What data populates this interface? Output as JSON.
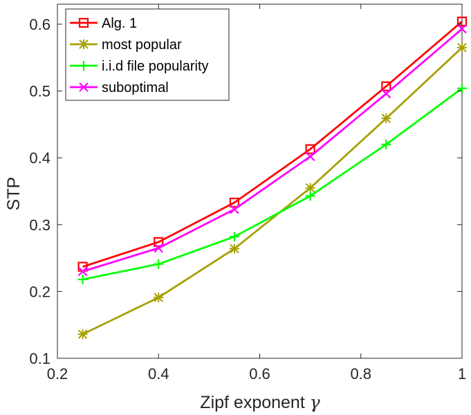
{
  "chart_data": {
    "type": "line",
    "title": "",
    "xlabel": "Zipf exponent",
    "xlabel_symbol": "γ",
    "ylabel": "STP",
    "xlim": [
      0.2,
      1.0
    ],
    "ylim": [
      0.1,
      0.63
    ],
    "xticks": [
      0.2,
      0.4,
      0.6,
      0.8,
      1.0
    ],
    "xtick_labels": [
      "0.2",
      "0.4",
      "0.6",
      "0.8",
      "1"
    ],
    "yticks": [
      0.1,
      0.2,
      0.3,
      0.4,
      0.5,
      0.6
    ],
    "ytick_labels": [
      "0.1",
      "0.2",
      "0.3",
      "0.4",
      "0.5",
      "0.6"
    ],
    "grid": false,
    "legend_position": "top-left",
    "x": [
      0.25,
      0.4,
      0.55,
      0.7,
      0.85,
      1.0
    ],
    "series": [
      {
        "name": "Alg. 1",
        "color": "#ff0000",
        "marker": "square",
        "values": [
          0.237,
          0.274,
          0.333,
          0.413,
          0.507,
          0.604
        ]
      },
      {
        "name": "most popular",
        "color": "#a6a000",
        "marker": "asterisk",
        "values": [
          0.136,
          0.191,
          0.264,
          0.355,
          0.459,
          0.565
        ]
      },
      {
        "name": "i.i.d file popularity",
        "color": "#00ff00",
        "marker": "plus",
        "values": [
          0.218,
          0.241,
          0.282,
          0.343,
          0.42,
          0.504
        ]
      },
      {
        "name": "suboptimal",
        "color": "#ff00ff",
        "marker": "cross",
        "values": [
          0.23,
          0.265,
          0.323,
          0.402,
          0.496,
          0.593
        ]
      }
    ]
  }
}
